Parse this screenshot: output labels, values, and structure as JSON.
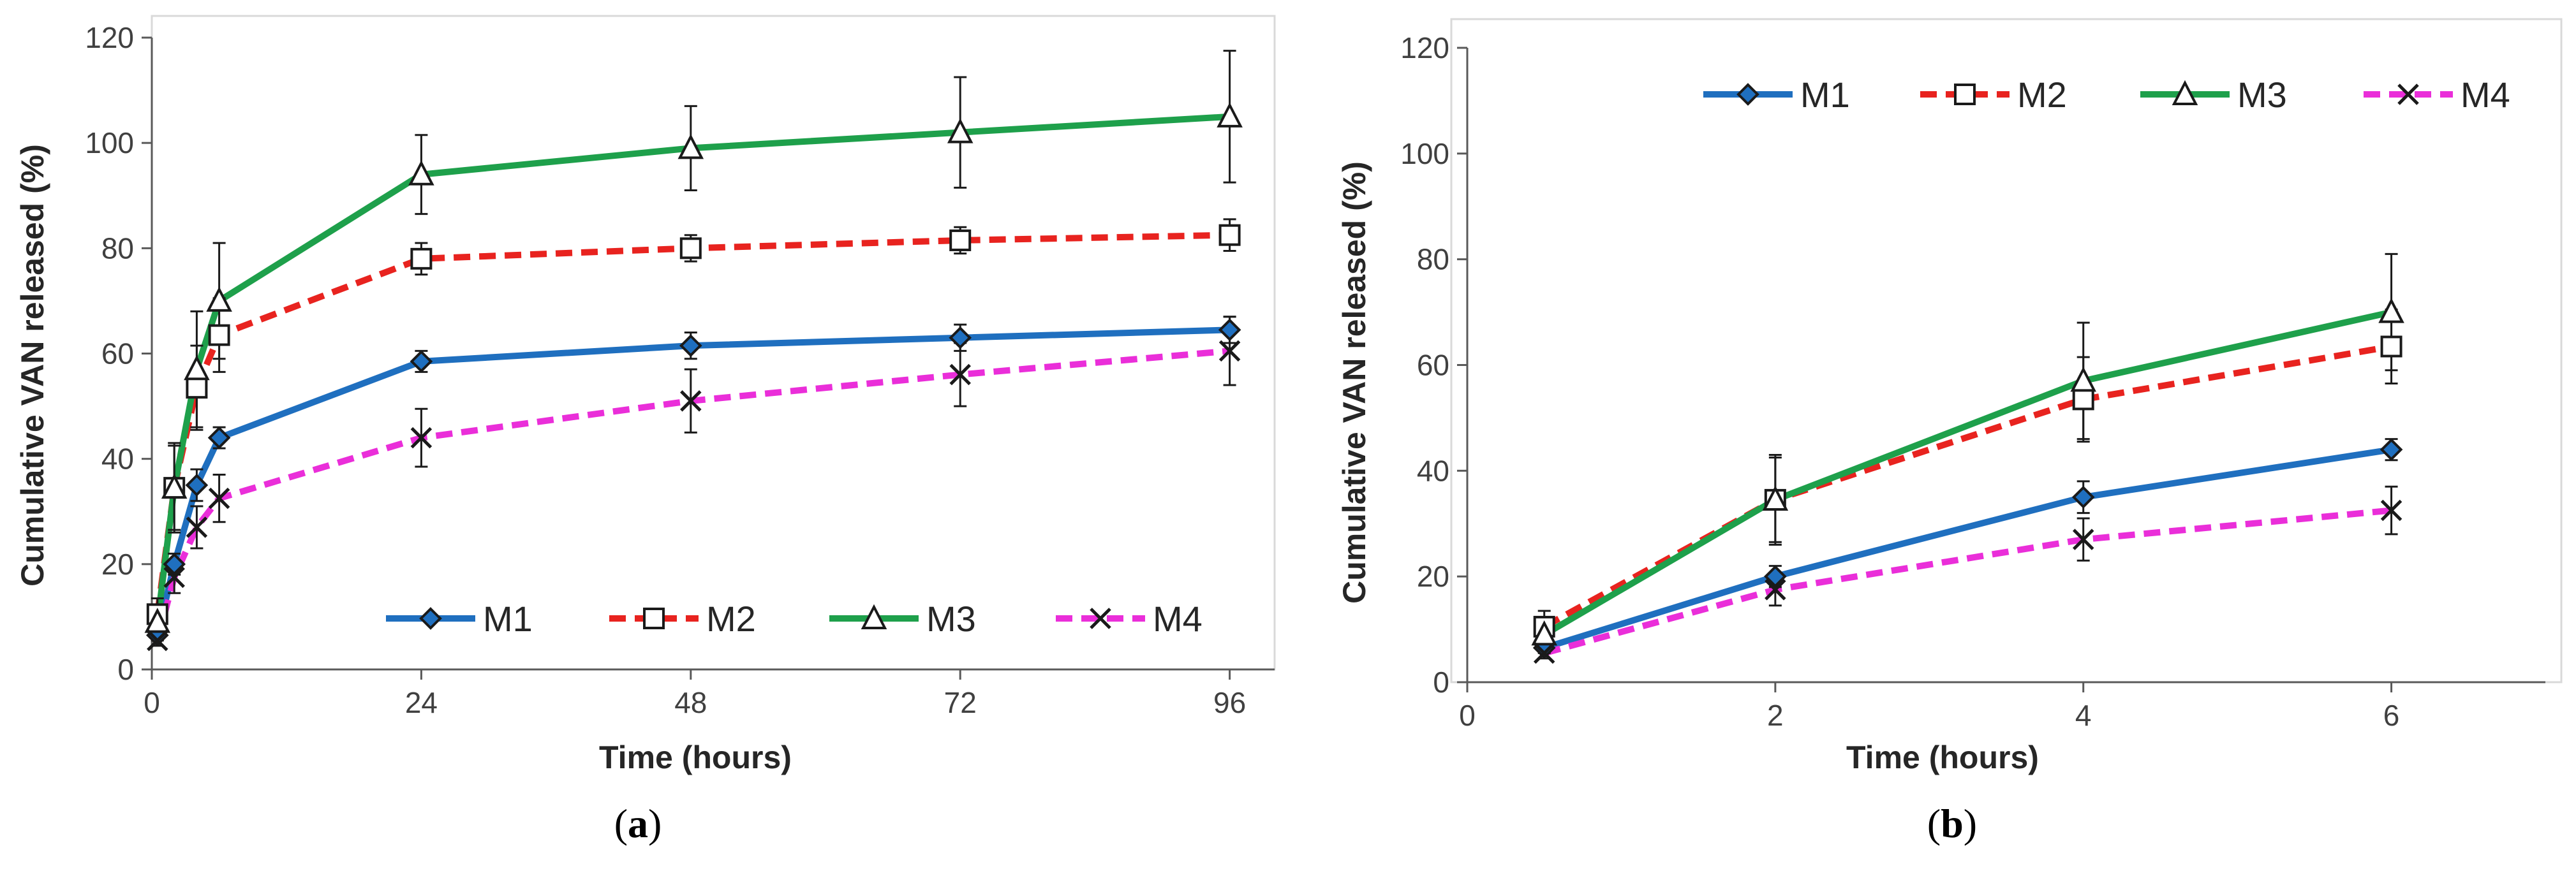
{
  "chart_data": [
    {
      "type": "line",
      "panel_label": {
        "open": "(",
        "letter": "a",
        "close": ")"
      },
      "xlabel": "Time (hours)",
      "ylabel": "Cumulative VAN released (%)",
      "xlim": [
        0,
        100
      ],
      "ylim": [
        0,
        120
      ],
      "xticks": [
        0,
        24,
        48,
        72,
        96
      ],
      "yticks": [
        0,
        20,
        40,
        60,
        80,
        100,
        120
      ],
      "grid": false,
      "legend_position": "bottom",
      "series": [
        {
          "name": "M1",
          "color": "#1f6fbf",
          "dash": "solid",
          "marker": "diamond",
          "x": [
            0.5,
            2,
            4,
            6,
            24,
            48,
            72,
            96
          ],
          "y": [
            6.5,
            20,
            35,
            44,
            58.5,
            61.5,
            63,
            64.5
          ],
          "err": [
            1,
            2,
            3,
            2,
            2,
            2.5,
            2.5,
            2.5
          ]
        },
        {
          "name": "M2",
          "color": "#e8231f",
          "dash": "dashed",
          "marker": "square",
          "x": [
            0.5,
            2,
            4,
            6,
            24,
            48,
            72,
            96
          ],
          "y": [
            10.5,
            34.5,
            53.5,
            63.5,
            78,
            80,
            81.5,
            82.5
          ],
          "err": [
            3,
            8,
            8,
            7,
            3,
            2.5,
            2.5,
            3
          ]
        },
        {
          "name": "M3",
          "color": "#1ea04b",
          "dash": "solid",
          "marker": "triangle",
          "x": [
            0.5,
            2,
            4,
            6,
            24,
            48,
            72,
            96
          ],
          "y": [
            9,
            34.5,
            57,
            70,
            94,
            99,
            102,
            105
          ],
          "err": [
            3,
            8.5,
            11,
            11,
            7.5,
            8,
            10.5,
            12.5
          ]
        },
        {
          "name": "M4",
          "color": "#ea2ed9",
          "dash": "dashed",
          "marker": "cross",
          "x": [
            0.5,
            2,
            4,
            6,
            24,
            48,
            72,
            96
          ],
          "y": [
            5.5,
            17.5,
            27,
            32.5,
            44,
            51,
            56,
            60.5
          ],
          "err": [
            1,
            3,
            4,
            4.5,
            5.5,
            6,
            6,
            6.5
          ]
        }
      ]
    },
    {
      "type": "line",
      "panel_label": {
        "open": "(",
        "letter": "b",
        "close": ")"
      },
      "xlabel": "Time (hours)",
      "ylabel": "Cumulative VAN released (%)",
      "xlim": [
        0,
        7
      ],
      "ylim": [
        0,
        120
      ],
      "xticks": [
        0,
        2,
        4,
        6
      ],
      "yticks": [
        0,
        20,
        40,
        60,
        80,
        100,
        120
      ],
      "grid": false,
      "legend_position": "top",
      "series": [
        {
          "name": "M1",
          "color": "#1f6fbf",
          "dash": "solid",
          "marker": "diamond",
          "x": [
            0.5,
            2,
            4,
            6
          ],
          "y": [
            6.5,
            20,
            35,
            44
          ],
          "err": [
            1,
            2,
            3,
            2
          ]
        },
        {
          "name": "M2",
          "color": "#e8231f",
          "dash": "dashed",
          "marker": "square",
          "x": [
            0.5,
            2,
            4,
            6
          ],
          "y": [
            10.5,
            34.5,
            53.5,
            63.5
          ],
          "err": [
            3,
            8,
            8,
            7
          ]
        },
        {
          "name": "M3",
          "color": "#1ea04b",
          "dash": "solid",
          "marker": "triangle",
          "x": [
            0.5,
            2,
            4,
            6
          ],
          "y": [
            9,
            34.5,
            57,
            70
          ],
          "err": [
            3,
            8.5,
            11,
            11
          ]
        },
        {
          "name": "M4",
          "color": "#ea2ed9",
          "dash": "dashed",
          "marker": "cross",
          "x": [
            0.5,
            2,
            4,
            6
          ],
          "y": [
            5.5,
            17.5,
            27,
            32.5
          ],
          "err": [
            1,
            3,
            4,
            4.5
          ]
        }
      ]
    }
  ]
}
